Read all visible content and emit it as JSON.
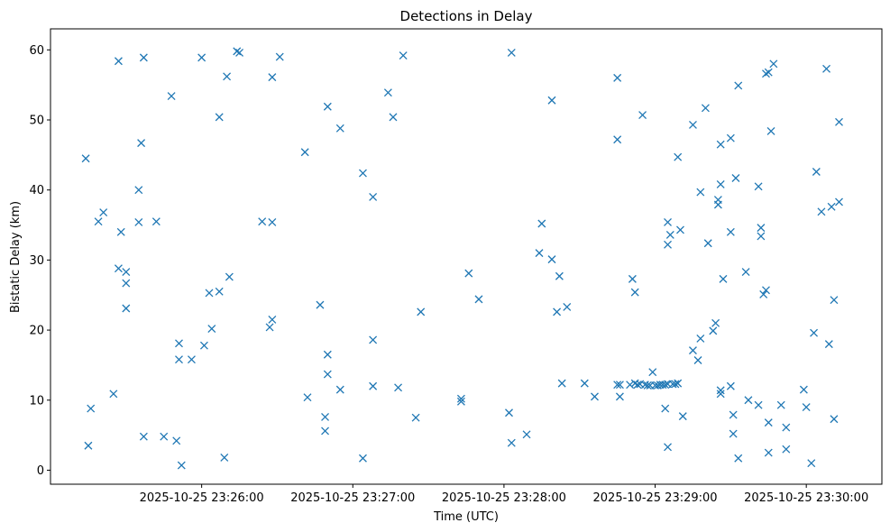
{
  "chart_data": {
    "type": "scatter",
    "title": "Detections in Delay",
    "xlabel": "Time (UTC)",
    "ylabel": "Bistatic Delay (km)",
    "marker": "x",
    "color": "#1f77b4",
    "grid": false,
    "x_time_range": [
      "2025-10-25 23:25:00",
      "2025-10-25 23:30:30"
    ],
    "x_tick_labels": [
      "2025-10-25 23:26:00",
      "2025-10-25 23:27:00",
      "2025-10-25 23:28:00",
      "2025-10-25 23:29:00",
      "2025-10-25 23:30:00"
    ],
    "ylim": [
      -2,
      63
    ],
    "y_ticks": [
      0,
      10,
      20,
      30,
      40,
      50,
      60
    ],
    "points": [
      [
        "23:25:14",
        44.5
      ],
      [
        "23:25:15",
        3.5
      ],
      [
        "23:25:16",
        8.8
      ],
      [
        "23:25:19",
        35.5
      ],
      [
        "23:25:21",
        36.8
      ],
      [
        "23:25:25",
        10.9
      ],
      [
        "23:25:27",
        58.4
      ],
      [
        "23:25:27",
        28.8
      ],
      [
        "23:25:28",
        34.0
      ],
      [
        "23:25:30",
        28.3
      ],
      [
        "23:25:30",
        26.7
      ],
      [
        "23:25:30",
        23.1
      ],
      [
        "23:25:35",
        40.0
      ],
      [
        "23:25:35",
        35.4
      ],
      [
        "23:25:36",
        46.7
      ],
      [
        "23:25:37",
        4.8
      ],
      [
        "23:25:37",
        58.9
      ],
      [
        "23:25:42",
        35.5
      ],
      [
        "23:25:45",
        4.8
      ],
      [
        "23:25:48",
        53.4
      ],
      [
        "23:25:50",
        4.2
      ],
      [
        "23:25:51",
        18.1
      ],
      [
        "23:25:51",
        15.8
      ],
      [
        "23:25:52",
        0.7
      ],
      [
        "23:25:56",
        15.8
      ],
      [
        "23:26:01",
        17.8
      ],
      [
        "23:26:03",
        25.3
      ],
      [
        "23:26:04",
        20.2
      ],
      [
        "23:26:07",
        25.5
      ],
      [
        "23:26:07",
        50.4
      ],
      [
        "23:26:09",
        1.8
      ],
      [
        "23:26:10",
        56.2
      ],
      [
        "23:26:11",
        27.6
      ],
      [
        "23:26:14",
        59.8
      ],
      [
        "23:26:15",
        59.6
      ],
      [
        "23:26:00",
        58.9
      ],
      [
        "23:26:24",
        35.5
      ],
      [
        "23:26:27",
        20.4
      ],
      [
        "23:26:28",
        21.5
      ],
      [
        "23:26:28",
        56.1
      ],
      [
        "23:26:28",
        35.4
      ],
      [
        "23:26:31",
        59.0
      ],
      [
        "23:26:41",
        45.4
      ],
      [
        "23:26:42",
        10.4
      ],
      [
        "23:26:47",
        23.6
      ],
      [
        "23:26:49",
        7.6
      ],
      [
        "23:26:49",
        5.6
      ],
      [
        "23:26:50",
        16.5
      ],
      [
        "23:26:50",
        13.7
      ],
      [
        "23:26:50",
        51.9
      ],
      [
        "23:26:55",
        11.5
      ],
      [
        "23:26:55",
        48.8
      ],
      [
        "23:27:04",
        42.4
      ],
      [
        "23:27:04",
        1.7
      ],
      [
        "23:27:08",
        39.0
      ],
      [
        "23:27:08",
        18.6
      ],
      [
        "23:27:08",
        12.0
      ],
      [
        "23:27:14",
        53.9
      ],
      [
        "23:27:16",
        50.4
      ],
      [
        "23:27:18",
        11.8
      ],
      [
        "23:27:20",
        59.2
      ],
      [
        "23:27:25",
        7.5
      ],
      [
        "23:27:27",
        22.6
      ],
      [
        "23:27:43",
        10.2
      ],
      [
        "23:27:43",
        9.8
      ],
      [
        "23:27:46",
        28.1
      ],
      [
        "23:27:50",
        24.4
      ],
      [
        "23:28:02",
        8.2
      ],
      [
        "23:28:03",
        3.9
      ],
      [
        "23:28:03",
        59.6
      ],
      [
        "23:28:09",
        5.1
      ],
      [
        "23:28:14",
        31.0
      ],
      [
        "23:28:15",
        35.2
      ],
      [
        "23:28:19",
        30.1
      ],
      [
        "23:28:19",
        52.8
      ],
      [
        "23:28:21",
        22.6
      ],
      [
        "23:28:22",
        27.7
      ],
      [
        "23:28:23",
        12.4
      ],
      [
        "23:28:25",
        23.3
      ],
      [
        "23:28:32",
        12.4
      ],
      [
        "23:28:36",
        10.5
      ],
      [
        "23:28:45",
        47.2
      ],
      [
        "23:28:45",
        56.0
      ],
      [
        "23:28:45",
        12.2
      ],
      [
        "23:28:46",
        12.2
      ],
      [
        "23:28:46",
        10.5
      ],
      [
        "23:28:50",
        12.2
      ],
      [
        "23:28:51",
        27.3
      ],
      [
        "23:28:52",
        25.4
      ],
      [
        "23:28:52",
        12.4
      ],
      [
        "23:28:53",
        12.2
      ],
      [
        "23:28:54",
        12.3
      ],
      [
        "23:28:55",
        50.7
      ],
      [
        "23:28:56",
        12.2
      ],
      [
        "23:28:57",
        12.1
      ],
      [
        "23:28:58",
        12.1
      ],
      [
        "23:28:59",
        14.0
      ],
      [
        "23:29:00",
        12.1
      ],
      [
        "23:29:01",
        12.1
      ],
      [
        "23:29:02",
        12.2
      ],
      [
        "23:29:03",
        12.2
      ],
      [
        "23:29:04",
        8.8
      ],
      [
        "23:29:04",
        12.2
      ],
      [
        "23:29:05",
        35.4
      ],
      [
        "23:29:05",
        32.2
      ],
      [
        "23:29:05",
        3.3
      ],
      [
        "23:29:05",
        12.3
      ],
      [
        "23:29:06",
        33.6
      ],
      [
        "23:29:07",
        12.3
      ],
      [
        "23:29:08",
        12.3
      ],
      [
        "23:29:09",
        44.7
      ],
      [
        "23:29:09",
        12.4
      ],
      [
        "23:29:10",
        34.3
      ],
      [
        "23:29:11",
        7.7
      ],
      [
        "23:29:15",
        17.1
      ],
      [
        "23:29:15",
        49.3
      ],
      [
        "23:29:17",
        15.7
      ],
      [
        "23:29:18",
        18.8
      ],
      [
        "23:29:18",
        39.7
      ],
      [
        "23:29:20",
        51.7
      ],
      [
        "23:29:21",
        32.4
      ],
      [
        "23:29:23",
        19.9
      ],
      [
        "23:29:24",
        21.0
      ],
      [
        "23:29:25",
        38.6
      ],
      [
        "23:29:25",
        37.9
      ],
      [
        "23:29:26",
        46.5
      ],
      [
        "23:29:26",
        40.8
      ],
      [
        "23:29:26",
        11.4
      ],
      [
        "23:29:26",
        10.9
      ],
      [
        "23:29:27",
        27.3
      ],
      [
        "23:29:30",
        47.4
      ],
      [
        "23:29:30",
        34.0
      ],
      [
        "23:29:30",
        12.0
      ],
      [
        "23:29:31",
        7.9
      ],
      [
        "23:29:31",
        5.2
      ],
      [
        "23:29:32",
        41.7
      ],
      [
        "23:29:33",
        54.9
      ],
      [
        "23:29:33",
        1.7
      ],
      [
        "23:29:36",
        28.3
      ],
      [
        "23:29:37",
        10.0
      ],
      [
        "23:29:41",
        9.3
      ],
      [
        "23:29:41",
        40.5
      ],
      [
        "23:29:42",
        34.6
      ],
      [
        "23:29:42",
        33.4
      ],
      [
        "23:29:43",
        25.1
      ],
      [
        "23:29:44",
        56.6
      ],
      [
        "23:29:44",
        25.7
      ],
      [
        "23:29:45",
        6.8
      ],
      [
        "23:29:45",
        2.5
      ],
      [
        "23:29:45",
        56.8
      ],
      [
        "23:29:46",
        48.4
      ],
      [
        "23:29:47",
        58.0
      ],
      [
        "23:29:50",
        9.3
      ],
      [
        "23:29:52",
        3.0
      ],
      [
        "23:29:52",
        6.1
      ],
      [
        "23:29:59",
        11.5
      ],
      [
        "23:30:00",
        9.0
      ],
      [
        "23:30:02",
        1.0
      ],
      [
        "23:30:03",
        19.6
      ],
      [
        "23:30:04",
        42.6
      ],
      [
        "23:30:06",
        36.9
      ],
      [
        "23:30:08",
        57.3
      ],
      [
        "23:30:09",
        18.0
      ],
      [
        "23:30:10",
        37.6
      ],
      [
        "23:30:11",
        7.3
      ],
      [
        "23:30:11",
        24.3
      ],
      [
        "23:30:13",
        38.3
      ],
      [
        "23:30:13",
        49.7
      ]
    ]
  }
}
